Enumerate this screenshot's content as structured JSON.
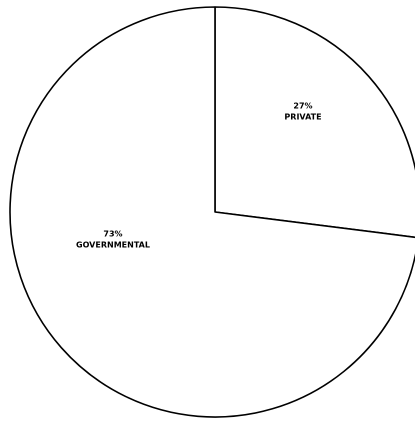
{
  "chart_data": {
    "type": "pie",
    "categories": [
      "PRIVATE",
      "GOVERNMENTAL"
    ],
    "values": [
      27,
      73
    ],
    "value_labels": [
      "27%",
      "73%"
    ],
    "colors": [
      "#ffffff",
      "#ffffff"
    ]
  }
}
